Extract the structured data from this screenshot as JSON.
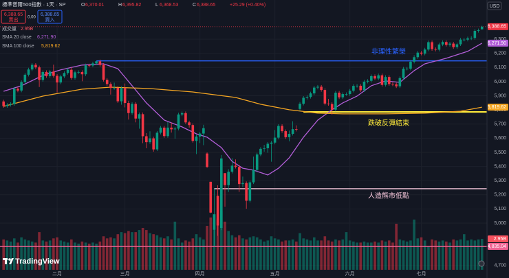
{
  "header": {
    "title": "標準普爾500指數 · 1天 · SP",
    "ohlc": [
      {
        "key": "O",
        "value": "6,370.01"
      },
      {
        "key": "H",
        "value": "6,395.82"
      },
      {
        "key": "L",
        "value": "6,368.53"
      },
      {
        "key": "C",
        "value": "6,388.65"
      }
    ],
    "change": "+25.29 (+0.40%)",
    "sell": {
      "price": "6,388.65",
      "label": "賣出"
    },
    "spread": "0.00",
    "buy": {
      "price": "6,388.65",
      "label": "買入"
    },
    "currency": "USD"
  },
  "logo": "TradingView",
  "chart_data": {
    "type": "candlestick",
    "xlim": [
      -1,
      135.4
    ],
    "xticks": [
      {
        "value": 15,
        "label": "二月"
      },
      {
        "value": 34,
        "label": "三月"
      },
      {
        "value": 55,
        "label": "四月"
      },
      {
        "value": 76,
        "label": "五月"
      },
      {
        "value": 97,
        "label": "六月"
      },
      {
        "value": 117,
        "label": "七月"
      }
    ],
    "ylim": [
      4670,
      6519
    ],
    "yticks": [
      {
        "value": 4700,
        "label": "4,700"
      },
      {
        "value": 5000,
        "label": "5,000"
      },
      {
        "value": 5100,
        "label": "5,100"
      },
      {
        "value": 5200,
        "label": "5,200"
      },
      {
        "value": 5300,
        "label": "5,300"
      },
      {
        "value": 5400,
        "label": "5,400"
      },
      {
        "value": 5500,
        "label": "5,500"
      },
      {
        "value": 5600,
        "label": "5,600"
      },
      {
        "value": 5700,
        "label": "5,700"
      },
      {
        "value": 5800,
        "label": "5,800"
      },
      {
        "value": 5900,
        "label": "5,900"
      },
      {
        "value": 6000,
        "label": "6,000"
      },
      {
        "value": 6100,
        "label": "6,100"
      },
      {
        "value": 6200,
        "label": "6,200"
      },
      {
        "value": 6300,
        "label": "6,300"
      }
    ],
    "grid": true,
    "up_color": "#089981",
    "down_color": "#f23645",
    "open": [
      5860,
      5827,
      5836,
      5842,
      5950,
      5937,
      5997,
      6049,
      6086,
      6119,
      6101,
      6012,
      6068,
      6039,
      6071,
      6041,
      5994,
      6037,
      6061,
      6084,
      6026,
      6066,
      6068,
      6052,
      6115,
      6114,
      6129,
      6144,
      6118,
      6013,
      5983,
      5955,
      5956,
      5861,
      5955,
      5849,
      5778,
      5843,
      5739,
      5770,
      5614,
      5572,
      5599,
      5521,
      5639,
      5675,
      5615,
      5675,
      5663,
      5668,
      5768,
      5777,
      5712,
      5693,
      5581,
      5612,
      5633,
      5492,
      5292,
      4953,
      5193,
      4966,
      5353,
      5268,
      5363,
      5406,
      5397,
      5276,
      5283,
      5158,
      5288,
      5376,
      5485,
      5525,
      5529,
      5561,
      5569,
      5604,
      5687,
      5650,
      5607,
      5631,
      5664,
      5807,
      5844,
      5886,
      5892,
      5917,
      5958,
      5964,
      5941,
      5845,
      5842,
      5802,
      5922,
      5889,
      5912,
      5912,
      5936,
      5970,
      5971,
      5939,
      6000,
      6006,
      6039,
      6022,
      6045,
      5977,
      6033,
      5983,
      5981,
      5967,
      6025,
      6092,
      6092,
      6141,
      6173,
      6205,
      6198,
      6227,
      6279,
      6230,
      6226,
      6263,
      6280,
      6260,
      6269,
      6244,
      6264,
      6297,
      6297,
      6306,
      6309,
      6359,
      6370.01
    ],
    "high": [
      5872,
      5848,
      5854,
      5962,
      5962,
      6009,
      6061,
      6098,
      6131,
      6131,
      6113,
      6080,
      6080,
      6083,
      6120,
      6053,
      6049,
      6073,
      6096,
      6101,
      6078,
      6080,
      6080,
      6127,
      6127,
      6141,
      6147,
      6156,
      6130,
      6025,
      5995,
      5993,
      5968,
      5967,
      5987,
      5865,
      5855,
      5855,
      5782,
      5782,
      5636,
      5649,
      5611,
      5651,
      5687,
      5687,
      5715,
      5711,
      5680,
      5780,
      5789,
      5789,
      5724,
      5705,
      5624,
      5645,
      5695,
      5500,
      5292,
      5246,
      5267,
      5481,
      5353,
      5381,
      5459,
      5450,
      5409,
      5329,
      5295,
      5300,
      5470,
      5497,
      5537,
      5553,
      5573,
      5581,
      5658,
      5699,
      5699,
      5662,
      5654,
      5720,
      5691,
      5856,
      5898,
      5904,
      5929,
      5970,
      5976,
      5976,
      5953,
      5878,
      5854,
      5934,
      5934,
      5924,
      5924,
      5948,
      5982,
      5983,
      5983,
      6012,
      6018,
      6051,
      6051,
      6057,
      6057,
      6045,
      6045,
      5995,
      5993,
      6037,
      6104,
      6104,
      6153,
      6187,
      6217,
      6217,
      6239,
      6291,
      6291,
      6242,
      6275,
      6292,
      6292,
      6281,
      6281,
      6276,
      6309,
      6309,
      6318,
      6321,
      6371,
      6375,
      6395.82
    ],
    "low": [
      5815,
      5815,
      5824,
      5830,
      5925,
      5925,
      5985,
      6037,
      6074,
      6089,
      5962,
      6000,
      6027,
      6027,
      6029,
      5923,
      5982,
      6025,
      6049,
      6014,
      6014,
      6054,
      6003,
      6040,
      6102,
      6102,
      6117,
      6106,
      6001,
      5971,
      5909,
      5943,
      5849,
      5837,
      5818,
      5732,
      5766,
      5712,
      5667,
      5565,
      5529,
      5560,
      5505,
      5509,
      5627,
      5603,
      5603,
      5640,
      5597,
      5656,
      5756,
      5700,
      5675,
      5569,
      5488,
      5566,
      5551,
      5390,
      5070,
      4835,
      4910,
      4950,
      5115,
      5220,
      5351,
      5386,
      5220,
      5255,
      5101,
      5146,
      5276,
      5364,
      5473,
      5505,
      5497,
      5434,
      5557,
      5592,
      5638,
      5595,
      5578,
      5619,
      5648,
      5795,
      5832,
      5874,
      5880,
      5905,
      5946,
      5929,
      5833,
      5830,
      5767,
      5790,
      5877,
      5877,
      5900,
      5900,
      5924,
      5958,
      5927,
      5927,
      5988,
      5994,
      6010,
      6010,
      5965,
      5965,
      5971,
      5969,
      5955,
      5955,
      6013,
      6080,
      6080,
      6129,
      6161,
      6186,
      6186,
      6215,
      6218,
      6214,
      6214,
      6251,
      6248,
      6248,
      6232,
      6232,
      6252,
      6285,
      6285,
      6294,
      6297,
      6347,
      6368.53
    ],
    "close": [
      5827,
      5836,
      5842,
      5950,
      5937,
      5997,
      6049,
      6086,
      6119,
      6101,
      6012,
      6068,
      6039,
      6071,
      6041,
      5994,
      6037,
      6061,
      6084,
      6026,
      6066,
      6068,
      6052,
      6115,
      6114,
      6129,
      6144,
      6118,
      6013,
      5983,
      5955,
      5956,
      5861,
      5955,
      5849,
      5778,
      5843,
      5739,
      5770,
      5614,
      5572,
      5599,
      5521,
      5639,
      5675,
      5615,
      5675,
      5663,
      5668,
      5768,
      5777,
      5712,
      5693,
      5581,
      5612,
      5633,
      5671,
      5397,
      5074,
      5062,
      4983,
      5457,
      5268,
      5363,
      5406,
      5397,
      5276,
      5283,
      5158,
      5288,
      5376,
      5485,
      5525,
      5529,
      5561,
      5569,
      5604,
      5687,
      5650,
      5607,
      5631,
      5664,
      5660,
      5844,
      5886,
      5892,
      5917,
      5958,
      5964,
      5941,
      5845,
      5842,
      5802,
      5922,
      5889,
      5912,
      5912,
      5936,
      5970,
      5971,
      5939,
      6000,
      6006,
      6039,
      6022,
      6045,
      5977,
      6033,
      5983,
      5981,
      5967,
      6025,
      6092,
      6092,
      6141,
      6173,
      6205,
      6198,
      6227,
      6279,
      6230,
      6226,
      6263,
      6280,
      6260,
      6269,
      6244,
      6264,
      6297,
      6297,
      6306,
      6309,
      6359,
      6363.36,
      6388.65
    ],
    "last_tag": {
      "value": 6388.65,
      "label": "6,388.65",
      "color": "#f23645"
    },
    "volume": {
      "name": "成交量",
      "ylim": [
        0,
        25
      ],
      "tag": {
        "value": 2.95,
        "label": "2.95B",
        "color": "#f7525f"
      },
      "values": [
        2.9,
        2.8,
        2.7,
        3.0,
        2.6,
        3.1,
        2.9,
        2.8,
        2.7,
        2.6,
        3.6,
        2.8,
        2.7,
        2.8,
        3.0,
        3.1,
        2.8,
        2.7,
        2.6,
        2.9,
        2.6,
        2.5,
        2.7,
        2.6,
        2.5,
        2.6,
        2.5,
        2.7,
        3.2,
        3.0,
        3.1,
        3.0,
        3.4,
        3.6,
        3.5,
        3.7,
        3.6,
        3.6,
        3.8,
        4.0,
        3.8,
        3.5,
        3.4,
        3.3,
        3.1,
        3.0,
        3.2,
        2.9,
        4.6,
        3.0,
        2.6,
        2.8,
        2.7,
        3.0,
        3.4,
        3.1,
        2.9,
        4.2,
        5.0,
        5.3,
        4.9,
        5.6,
        4.6,
        3.7,
        3.3,
        3.1,
        3.3,
        3.0,
        2.9,
        3.1,
        3.2,
        3.1,
        2.9,
        2.7,
        2.8,
        3.2,
        3.0,
        2.9,
        2.7,
        2.8,
        2.8,
        2.9,
        2.7,
        3.5,
        3.0,
        2.9,
        2.8,
        3.1,
        2.8,
        2.8,
        3.2,
        2.8,
        2.7,
        2.9,
        2.8,
        2.9,
        3.6,
        2.8,
        2.7,
        2.6,
        2.6,
        2.7,
        2.6,
        2.6,
        2.7,
        2.6,
        2.8,
        2.7,
        2.8,
        2.6,
        4.4,
        2.9,
        2.8,
        2.7,
        2.8,
        4.8,
        3.0,
        3.1,
        2.8,
        2.2,
        2.9,
        2.8,
        2.7,
        2.8,
        2.7,
        2.6,
        2.9,
        2.8,
        2.9,
        3.4,
        2.8,
        2.9,
        2.8,
        2.9,
        2.95
      ]
    },
    "indicators": [
      {
        "name": "SMA 20 close",
        "color": "#b25ed8",
        "label": "6,271.90",
        "x": [
          0,
          5,
          11,
          16,
          22,
          28,
          32,
          36,
          40,
          45,
          50,
          54,
          57,
          61,
          64,
          67,
          70,
          74,
          77,
          80,
          84,
          88,
          92,
          95,
          99,
          103,
          107,
          111,
          115,
          118,
          124,
          130,
          134
        ],
        "values": [
          5932,
          5971,
          6044,
          6083,
          6117,
          6126,
          6092,
          5971,
          5850,
          5728,
          5680,
          5631,
          5607,
          5534,
          5437,
          5388,
          5374,
          5340,
          5388,
          5461,
          5607,
          5728,
          5801,
          5850,
          5898,
          5971,
          6005,
          5995,
          6078,
          6126,
          6165,
          6214,
          6271.9
        ]
      },
      {
        "name": "SMA 100 close",
        "color": "#f5a623",
        "label": "5,819.62",
        "x": [
          0,
          11,
          22,
          30,
          41,
          53,
          65,
          72,
          80,
          88,
          95,
          107,
          118,
          128,
          134
        ],
        "values": [
          5825,
          5898,
          5947,
          5961,
          5951,
          5927,
          5888,
          5840,
          5801,
          5777,
          5772,
          5772,
          5777,
          5791,
          5819.62
        ]
      }
    ],
    "levels": [
      {
        "name": "非理性繁榮",
        "value": 6147,
        "start": 26,
        "color": "#2962ff"
      },
      {
        "name": "跌破反彈結束",
        "value": 5786,
        "start": 84,
        "color": "#ffeb3b"
      },
      {
        "name": "人造熊市低點",
        "value": 5243,
        "start": 59,
        "color": "#f8c8dc"
      },
      {
        "value": 4835.04,
        "label": "4,835.04",
        "start": -1,
        "color": "#f06292"
      }
    ]
  }
}
